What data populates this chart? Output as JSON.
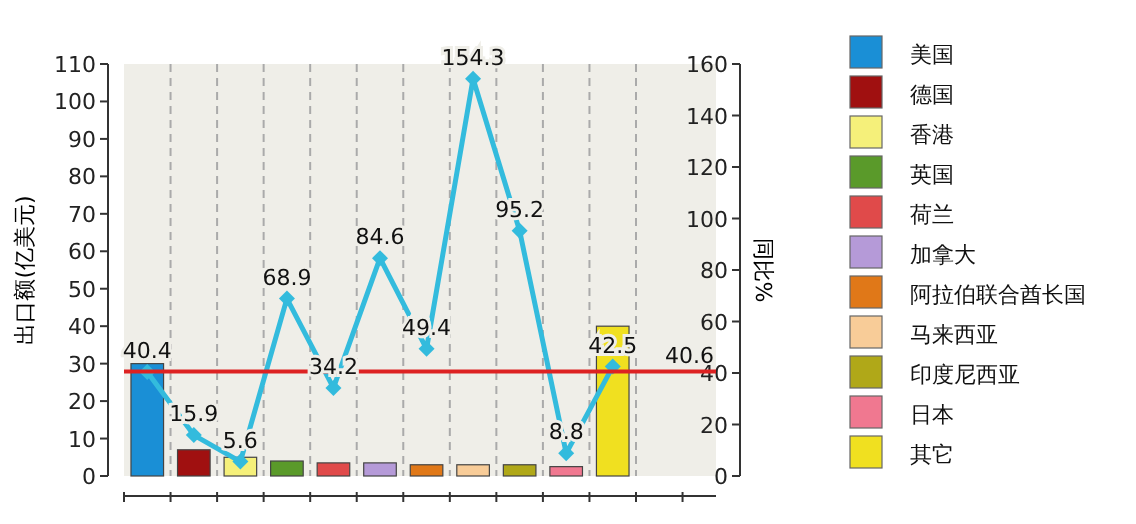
{
  "chart_data": {
    "type": "bar",
    "categories": [
      null,
      null,
      null,
      null,
      null,
      null,
      null,
      null,
      null,
      null,
      null
    ],
    "ylabel": "出口额(亿美元)",
    "y2label": "同比%",
    "ylim": [
      0,
      110
    ],
    "yticks": [
      0,
      10,
      20,
      30,
      40,
      50,
      60,
      70,
      80,
      90,
      100,
      110
    ],
    "y2lim": [
      0,
      160
    ],
    "y2ticks": [
      0,
      20,
      40,
      60,
      80,
      100,
      120,
      140,
      160
    ],
    "grid": "x",
    "legend": "right",
    "series": [
      {
        "name": "美国",
        "color": "#1a8fd6",
        "values": [
          30,
          null,
          null,
          null,
          null,
          null,
          null,
          null,
          null,
          null,
          null
        ]
      },
      {
        "name": "德国",
        "color": "#a01010",
        "values": [
          null,
          7,
          null,
          null,
          null,
          null,
          null,
          null,
          null,
          null,
          null
        ]
      },
      {
        "name": "香港",
        "color": "#f5f07a",
        "values": [
          null,
          null,
          5,
          null,
          null,
          null,
          null,
          null,
          null,
          null,
          null
        ]
      },
      {
        "name": "英国",
        "color": "#5a9a2a",
        "values": [
          null,
          null,
          null,
          4,
          null,
          null,
          null,
          null,
          null,
          null,
          null
        ]
      },
      {
        "name": "荷兰",
        "color": "#e04a4a",
        "values": [
          null,
          null,
          null,
          null,
          3.5,
          null,
          null,
          null,
          null,
          null,
          null
        ]
      },
      {
        "name": "加拿大",
        "color": "#b59ad8",
        "values": [
          null,
          null,
          null,
          null,
          null,
          3.5,
          null,
          null,
          null,
          null,
          null
        ]
      },
      {
        "name": "阿拉伯联合酋长国",
        "color": "#e07818",
        "values": [
          null,
          null,
          null,
          null,
          null,
          null,
          3,
          null,
          null,
          null,
          null
        ]
      },
      {
        "name": "马来西亚",
        "color": "#f8cc98",
        "values": [
          null,
          null,
          null,
          null,
          null,
          null,
          null,
          3,
          null,
          null,
          null
        ]
      },
      {
        "name": "印度尼西亚",
        "color": "#b0a818",
        "values": [
          null,
          null,
          null,
          null,
          null,
          null,
          null,
          null,
          3,
          null,
          null
        ]
      },
      {
        "name": "日本",
        "color": "#f07890",
        "values": [
          null,
          null,
          null,
          null,
          null,
          null,
          null,
          null,
          null,
          2.5,
          null
        ]
      },
      {
        "name": "其它",
        "color": "#f0e020",
        "values": [
          null,
          null,
          null,
          null,
          null,
          null,
          null,
          null,
          null,
          null,
          40
        ]
      },
      {
        "type": "line",
        "axis": "y2",
        "color": "#33bbdd",
        "marker": "diamond",
        "values": [
          40.4,
          15.9,
          5.6,
          68.9,
          34.2,
          84.6,
          49.4,
          154.3,
          95.2,
          8.8,
          42.5
        ],
        "value_labels": [
          "40.4",
          "15.9",
          "5.6",
          "68.9",
          "34.2",
          "84.6",
          "49.4",
          "154.3",
          "95.2",
          "8.8",
          "42.5"
        ]
      }
    ],
    "ref_lines": [
      {
        "axis": "y2",
        "value": 40.6,
        "label": "40.6",
        "color": "#dd2222"
      }
    ]
  }
}
